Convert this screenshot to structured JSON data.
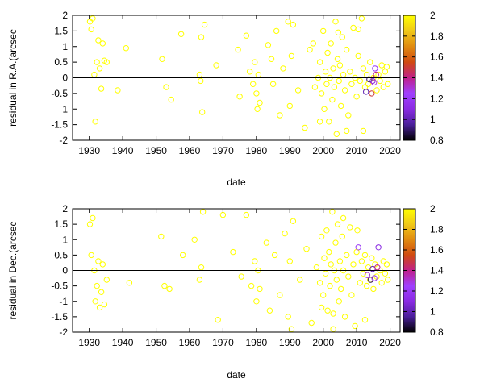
{
  "colormap": {
    "ticks": [
      "2",
      "1.8",
      "1.6",
      "1.4",
      "1.2",
      "1",
      "0.8"
    ],
    "stops": [
      {
        "v": 0.8,
        "color": "#000000"
      },
      {
        "v": 0.95,
        "color": "#4a1f9a"
      },
      {
        "v": 1.1,
        "color": "#8a2be2"
      },
      {
        "v": 1.25,
        "color": "#a040ff"
      },
      {
        "v": 1.4,
        "color": "#c0208a"
      },
      {
        "v": 1.55,
        "color": "#d04a10"
      },
      {
        "v": 1.7,
        "color": "#e08a10"
      },
      {
        "v": 1.85,
        "color": "#f0c818"
      },
      {
        "v": 2.0,
        "color": "#ffff00"
      }
    ]
  },
  "chart_data": [
    {
      "type": "scatter",
      "xlabel": "date",
      "ylabel": "residual in R.A.(arcsec",
      "xlim": [
        1925,
        2023
      ],
      "ylim": [
        -2,
        2
      ],
      "xticks": [
        "1930",
        "1940",
        "1950",
        "1960",
        "1970",
        "1980",
        "1990",
        "2000",
        "2010",
        "2020"
      ],
      "yticks": [
        "2",
        "1.5",
        "1",
        "0.5",
        "0",
        "-0.5",
        "-1",
        "-1.5",
        "-2"
      ],
      "clim": [
        0.8,
        2
      ],
      "zero_line": 0,
      "points": [
        [
          1930.2,
          1.8
        ],
        [
          1930.6,
          1.55
        ],
        [
          1931.0,
          1.9
        ],
        [
          1931.5,
          0.1
        ],
        [
          1931.8,
          -1.4
        ],
        [
          1932.3,
          0.5
        ],
        [
          1932.7,
          1.2
        ],
        [
          1933.1,
          0.3
        ],
        [
          1933.6,
          -0.35
        ],
        [
          1934.0,
          1.1
        ],
        [
          1934.5,
          0.55
        ],
        [
          1935.2,
          0.5
        ],
        [
          1938.5,
          -0.4
        ],
        [
          1941.0,
          0.95
        ],
        [
          1951.8,
          0.6
        ],
        [
          1953.0,
          -0.3
        ],
        [
          1954.5,
          -0.7
        ],
        [
          1957.5,
          1.4
        ],
        [
          1963.0,
          0.1
        ],
        [
          1963.3,
          -0.1
        ],
        [
          1963.5,
          1.3
        ],
        [
          1963.8,
          -1.1
        ],
        [
          1964.5,
          1.7
        ],
        [
          1968.0,
          0.4
        ],
        [
          1974.5,
          0.9
        ],
        [
          1975.0,
          -0.6
        ],
        [
          1977.0,
          1.35
        ],
        [
          1978.0,
          0.2
        ],
        [
          1979.0,
          -0.2
        ],
        [
          1979.5,
          0.5
        ],
        [
          1980.0,
          -0.5
        ],
        [
          1980.3,
          -1.0
        ],
        [
          1980.6,
          0.1
        ],
        [
          1981.0,
          -0.8
        ],
        [
          1983.5,
          1.05
        ],
        [
          1984.5,
          0.6
        ],
        [
          1985.0,
          -0.2
        ],
        [
          1986.0,
          1.5
        ],
        [
          1987.0,
          -1.2
        ],
        [
          1988.0,
          0.3
        ],
        [
          1989.5,
          1.8
        ],
        [
          1990.0,
          -0.9
        ],
        [
          1990.5,
          0.7
        ],
        [
          1991.0,
          1.7
        ],
        [
          1992.5,
          -0.4
        ],
        [
          1994.5,
          -1.6
        ],
        [
          1996.0,
          0.9
        ],
        [
          1997.5,
          -0.3
        ],
        [
          1998.5,
          0.0
        ],
        [
          1999.0,
          0.5
        ],
        [
          1999.5,
          -0.5
        ],
        [
          2000.0,
          1.5
        ],
        [
          2000.3,
          -1.0
        ],
        [
          2000.7,
          0.2
        ],
        [
          2001.0,
          -0.2
        ],
        [
          2001.3,
          0.8
        ],
        [
          2001.7,
          -1.4
        ],
        [
          2002.0,
          0.0
        ],
        [
          2002.3,
          1.1
        ],
        [
          2002.7,
          -0.7
        ],
        [
          2003.0,
          0.3
        ],
        [
          2003.3,
          -0.3
        ],
        [
          2003.7,
          1.8
        ],
        [
          2004.0,
          -1.8
        ],
        [
          2004.3,
          0.6
        ],
        [
          2004.7,
          -0.1
        ],
        [
          2005.0,
          0.4
        ],
        [
          2005.3,
          -0.9
        ],
        [
          2005.7,
          1.3
        ],
        [
          2006.0,
          0.1
        ],
        [
          2006.5,
          -0.4
        ],
        [
          2007.0,
          0.9
        ],
        [
          2007.5,
          -1.2
        ],
        [
          2008.0,
          0.2
        ],
        [
          2008.5,
          -0.2
        ],
        [
          2009.0,
          1.6
        ],
        [
          2009.5,
          0.0
        ],
        [
          2010.0,
          -0.6
        ],
        [
          2010.5,
          0.7
        ],
        [
          2011.0,
          -0.1
        ],
        [
          2011.5,
          1.9
        ],
        [
          2012.0,
          0.3
        ],
        [
          2012.5,
          -0.3
        ],
        [
          2013.0,
          0.1
        ],
        [
          2013.5,
          -0.2
        ],
        [
          2014.0,
          0.5
        ],
        [
          2014.5,
          -0.5
        ],
        [
          2015.0,
          0.0
        ],
        [
          2015.5,
          0.3
        ],
        [
          2016.0,
          -0.4
        ],
        [
          2016.5,
          0.1
        ],
        [
          2017.0,
          -0.1
        ],
        [
          2017.5,
          0.4
        ],
        [
          2018.0,
          -0.3
        ],
        [
          2018.5,
          0.2
        ],
        [
          2019.0,
          0.35
        ],
        [
          2019.3,
          -0.2
        ],
        [
          2012.8,
          -0.45
        ],
        [
          2013.8,
          -0.05
        ],
        [
          2014.8,
          -0.1
        ],
        [
          2015.2,
          -0.15
        ],
        [
          2015.8,
          0.1
        ],
        [
          2012.0,
          -1.7
        ],
        [
          2010.5,
          1.55
        ],
        [
          2007.0,
          -1.7
        ],
        [
          2004.5,
          1.45
        ],
        [
          1999.0,
          -1.4
        ],
        [
          1997.0,
          1.1
        ]
      ],
      "colors": [
        2.0,
        2.0,
        2.0,
        2.0,
        2.0,
        2.0,
        2.0,
        2.0,
        2.0,
        2.0,
        2.0,
        2.0,
        2.0,
        2.0,
        2.0,
        2.0,
        2.0,
        2.0,
        2.0,
        2.0,
        2.0,
        2.0,
        2.0,
        2.0,
        2.0,
        2.0,
        2.0,
        2.0,
        2.0,
        2.0,
        2.0,
        2.0,
        2.0,
        2.0,
        2.0,
        2.0,
        2.0,
        2.0,
        2.0,
        2.0,
        2.0,
        2.0,
        2.0,
        2.0,
        2.0,
        2.0,
        2.0,
        2.0,
        2.0,
        2.0,
        2.0,
        2.0,
        2.0,
        2.0,
        2.0,
        2.0,
        2.0,
        2.0,
        2.0,
        2.0,
        2.0,
        2.0,
        2.0,
        2.0,
        2.0,
        2.0,
        2.0,
        2.0,
        2.0,
        2.0,
        2.0,
        2.0,
        2.0,
        2.0,
        2.0,
        2.0,
        2.0,
        2.0,
        2.0,
        2.0,
        2.0,
        2.0,
        2.0,
        2.0,
        2.0,
        2.0,
        1.5,
        2.0,
        1.2,
        2.0,
        2.0,
        2.0,
        2.0,
        2.0,
        2.0,
        2.0,
        2.0,
        1.0,
        0.9,
        1.1,
        1.3,
        1.4,
        2.0,
        2.0,
        2.0,
        2.0,
        2.0,
        2.0
      ]
    },
    {
      "type": "scatter",
      "xlabel": "date",
      "ylabel": "residual in Dec.(arcsec",
      "xlim": [
        1925,
        2023
      ],
      "ylim": [
        -2,
        2
      ],
      "xticks": [
        "1930",
        "1940",
        "1950",
        "1960",
        "1970",
        "1980",
        "1990",
        "2000",
        "2010",
        "2020"
      ],
      "yticks": [
        "2",
        "1.5",
        "1",
        "0.5",
        "0",
        "-0.5",
        "-1",
        "-1.5",
        "-2"
      ],
      "clim": [
        0.8,
        2
      ],
      "zero_line": 0,
      "points": [
        [
          1930.2,
          1.5
        ],
        [
          1930.6,
          0.5
        ],
        [
          1931.0,
          1.7
        ],
        [
          1931.5,
          0.0
        ],
        [
          1931.8,
          -1.0
        ],
        [
          1932.3,
          -0.5
        ],
        [
          1932.7,
          0.3
        ],
        [
          1933.1,
          -1.2
        ],
        [
          1933.6,
          -0.7
        ],
        [
          1934.0,
          0.2
        ],
        [
          1934.5,
          -1.1
        ],
        [
          1935.2,
          -0.3
        ],
        [
          1942.0,
          -0.4
        ],
        [
          1951.5,
          1.1
        ],
        [
          1952.5,
          -0.5
        ],
        [
          1954.0,
          -0.6
        ],
        [
          1958.0,
          0.5
        ],
        [
          1961.5,
          1.0
        ],
        [
          1963.0,
          -0.3
        ],
        [
          1963.5,
          0.1
        ],
        [
          1964.0,
          1.9
        ],
        [
          1968.5,
          -1.6
        ],
        [
          1970.0,
          1.8
        ],
        [
          1973.0,
          0.6
        ],
        [
          1975.5,
          -0.2
        ],
        [
          1977.0,
          1.8
        ],
        [
          1978.5,
          -0.5
        ],
        [
          1979.5,
          0.3
        ],
        [
          1980.0,
          -1.0
        ],
        [
          1980.5,
          0.0
        ],
        [
          1981.0,
          -0.6
        ],
        [
          1983.0,
          0.9
        ],
        [
          1984.0,
          -1.3
        ],
        [
          1985.5,
          0.5
        ],
        [
          1987.0,
          -0.8
        ],
        [
          1988.5,
          1.2
        ],
        [
          1989.5,
          -1.5
        ],
        [
          1990.0,
          0.3
        ],
        [
          1990.5,
          -1.9
        ],
        [
          1991.0,
          1.6
        ],
        [
          1993.0,
          -0.3
        ],
        [
          1995.0,
          0.7
        ],
        [
          1996.5,
          -1.7
        ],
        [
          1998.0,
          0.1
        ],
        [
          1999.0,
          -0.4
        ],
        [
          1999.5,
          1.1
        ],
        [
          2000.0,
          -0.8
        ],
        [
          2000.3,
          0.4
        ],
        [
          2000.7,
          -0.1
        ],
        [
          2001.0,
          1.3
        ],
        [
          2001.3,
          -1.3
        ],
        [
          2001.7,
          0.6
        ],
        [
          2002.0,
          -0.5
        ],
        [
          2002.3,
          0.2
        ],
        [
          2002.7,
          1.9
        ],
        [
          2003.0,
          -1.9
        ],
        [
          2003.3,
          0.0
        ],
        [
          2003.7,
          0.9
        ],
        [
          2004.0,
          -0.3
        ],
        [
          2004.3,
          1.5
        ],
        [
          2004.7,
          -1.0
        ],
        [
          2005.0,
          0.3
        ],
        [
          2005.3,
          -0.6
        ],
        [
          2005.7,
          1.1
        ],
        [
          2006.0,
          0.0
        ],
        [
          2006.5,
          -1.5
        ],
        [
          2007.0,
          0.5
        ],
        [
          2007.5,
          -0.2
        ],
        [
          2008.0,
          1.4
        ],
        [
          2008.5,
          -0.8
        ],
        [
          2009.0,
          0.2
        ],
        [
          2009.5,
          -1.8
        ],
        [
          2010.0,
          0.6
        ],
        [
          2010.5,
          0.75
        ],
        [
          2011.0,
          -0.4
        ],
        [
          2011.5,
          0.3
        ],
        [
          2012.0,
          -0.1
        ],
        [
          2012.5,
          0.5
        ],
        [
          2013.0,
          -0.5
        ],
        [
          2013.5,
          0.1
        ],
        [
          2014.0,
          -0.3
        ],
        [
          2014.5,
          0.4
        ],
        [
          2015.0,
          -0.6
        ],
        [
          2015.5,
          0.2
        ],
        [
          2016.0,
          -0.2
        ],
        [
          2016.5,
          0.75
        ],
        [
          2017.0,
          0.0
        ],
        [
          2017.5,
          -0.4
        ],
        [
          2018.0,
          0.3
        ],
        [
          2018.5,
          -0.1
        ],
        [
          2019.0,
          0.2
        ],
        [
          2019.3,
          -0.3
        ],
        [
          2014.2,
          -0.3
        ],
        [
          2014.8,
          0.05
        ],
        [
          2015.3,
          -0.25
        ],
        [
          2016.2,
          0.1
        ],
        [
          2013.2,
          -0.15
        ],
        [
          2012.5,
          -1.6
        ],
        [
          2010.2,
          1.3
        ],
        [
          2006.0,
          1.7
        ],
        [
          2003.0,
          -1.4
        ],
        [
          1999.5,
          -1.2
        ]
      ],
      "colors": [
        2.0,
        2.0,
        2.0,
        2.0,
        2.0,
        2.0,
        2.0,
        2.0,
        2.0,
        2.0,
        2.0,
        2.0,
        2.0,
        2.0,
        2.0,
        2.0,
        2.0,
        2.0,
        2.0,
        2.0,
        2.0,
        2.0,
        2.0,
        2.0,
        2.0,
        2.0,
        2.0,
        2.0,
        2.0,
        2.0,
        2.0,
        2.0,
        2.0,
        2.0,
        2.0,
        2.0,
        2.0,
        2.0,
        2.0,
        2.0,
        2.0,
        2.0,
        2.0,
        2.0,
        2.0,
        2.0,
        2.0,
        2.0,
        2.0,
        2.0,
        2.0,
        2.0,
        2.0,
        2.0,
        2.0,
        2.0,
        2.0,
        2.0,
        2.0,
        2.0,
        2.0,
        2.0,
        2.0,
        2.0,
        2.0,
        2.0,
        2.0,
        2.0,
        2.0,
        2.0,
        2.0,
        2.0,
        2.0,
        1.2,
        2.0,
        2.0,
        2.0,
        2.0,
        2.0,
        2.0,
        2.0,
        2.0,
        2.0,
        2.0,
        2.0,
        1.1,
        2.0,
        2.0,
        2.0,
        2.0,
        2.0,
        2.0,
        0.9,
        1.0,
        1.2,
        1.4,
        1.3,
        2.0,
        2.0,
        2.0,
        2.0,
        2.0
      ]
    }
  ]
}
